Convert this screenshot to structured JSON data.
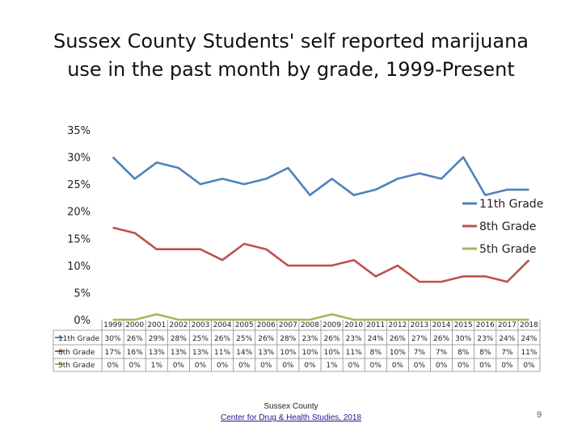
{
  "slide": {
    "title_line1": "Sussex County Students' self reported marijuana",
    "title_line2": "use in the past month by grade, 1999-Present",
    "footer_line1": "Sussex County",
    "footer_line2": "Center for Drug & Health Studies, 2018",
    "page_number": "9"
  },
  "chart_data": {
    "type": "line",
    "categories": [
      "1999",
      "2000",
      "2001",
      "2002",
      "2003",
      "2004",
      "2005",
      "2006",
      "2007",
      "2008",
      "2009",
      "2010",
      "2011",
      "2012",
      "2013",
      "2014",
      "2015",
      "2016",
      "2017",
      "2018"
    ],
    "ylim": [
      0,
      35
    ],
    "yticks": [
      "0%",
      "5%",
      "10%",
      "15%",
      "20%",
      "25%",
      "30%",
      "35%"
    ],
    "legend_position": "right",
    "grid": false,
    "series": [
      {
        "name": "11th Grade",
        "color": "#4f81bd",
        "values": [
          30,
          26,
          29,
          28,
          25,
          26,
          25,
          26,
          28,
          23,
          26,
          23,
          24,
          26,
          27,
          26,
          30,
          23,
          24,
          24
        ],
        "labels": [
          "30%",
          "26%",
          "29%",
          "28%",
          "25%",
          "26%",
          "25%",
          "26%",
          "28%",
          "23%",
          "26%",
          "23%",
          "24%",
          "26%",
          "27%",
          "26%",
          "30%",
          "23%",
          "24%",
          "24%"
        ]
      },
      {
        "name": "8th Grade",
        "color": "#c0504d",
        "values": [
          17,
          16,
          13,
          13,
          13,
          11,
          14,
          13,
          10,
          10,
          10,
          11,
          8,
          10,
          7,
          7,
          8,
          8,
          7,
          11
        ],
        "labels": [
          "17%",
          "16%",
          "13%",
          "13%",
          "13%",
          "11%",
          "14%",
          "13%",
          "10%",
          "10%",
          "10%",
          "11%",
          "8%",
          "10%",
          "7%",
          "7%",
          "8%",
          "8%",
          "7%",
          "11%"
        ]
      },
      {
        "name": "5th Grade",
        "color": "#9bbb59",
        "values": [
          0,
          0,
          1,
          0,
          0,
          0,
          0,
          0,
          0,
          0,
          1,
          0,
          0,
          0,
          0,
          0,
          0,
          0,
          0,
          0
        ],
        "labels": [
          "0%",
          "0%",
          "1%",
          "0%",
          "0%",
          "0%",
          "0%",
          "0%",
          "0%",
          "0%",
          "1%",
          "0%",
          "0%",
          "0%",
          "0%",
          "0%",
          "0%",
          "0%",
          "0%",
          "0%"
        ]
      }
    ]
  }
}
